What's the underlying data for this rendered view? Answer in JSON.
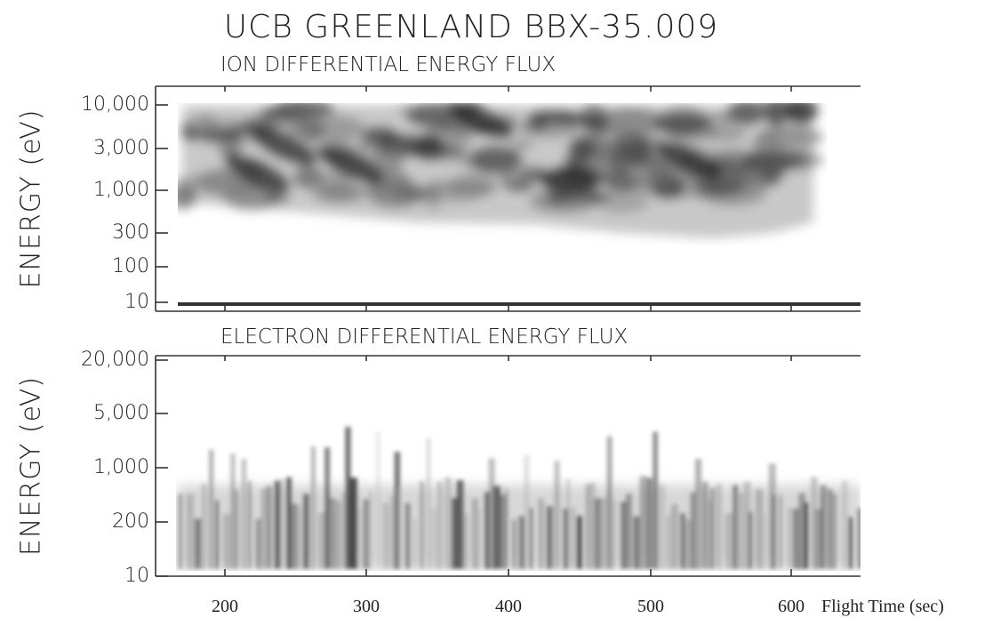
{
  "title": "UCB GREENLAND BBX-35.009",
  "panels": [
    {
      "title": "ION DIFFERENTIAL ENERGY FLUX",
      "ylabel": "ENERGY (eV)",
      "yticks": [
        "10,000",
        "3,000",
        "1,000",
        "300",
        "100",
        "10"
      ]
    },
    {
      "title": "ELECTRON DIFFERENTIAL ENERGY FLUX",
      "ylabel": "ENERGY (eV)",
      "yticks": [
        "20,000",
        "5,000",
        "1,000",
        "200",
        "10"
      ]
    }
  ],
  "xticks": [
    "200",
    "300",
    "400",
    "500",
    "600"
  ],
  "xlabel": "Flight Time (sec)"
}
